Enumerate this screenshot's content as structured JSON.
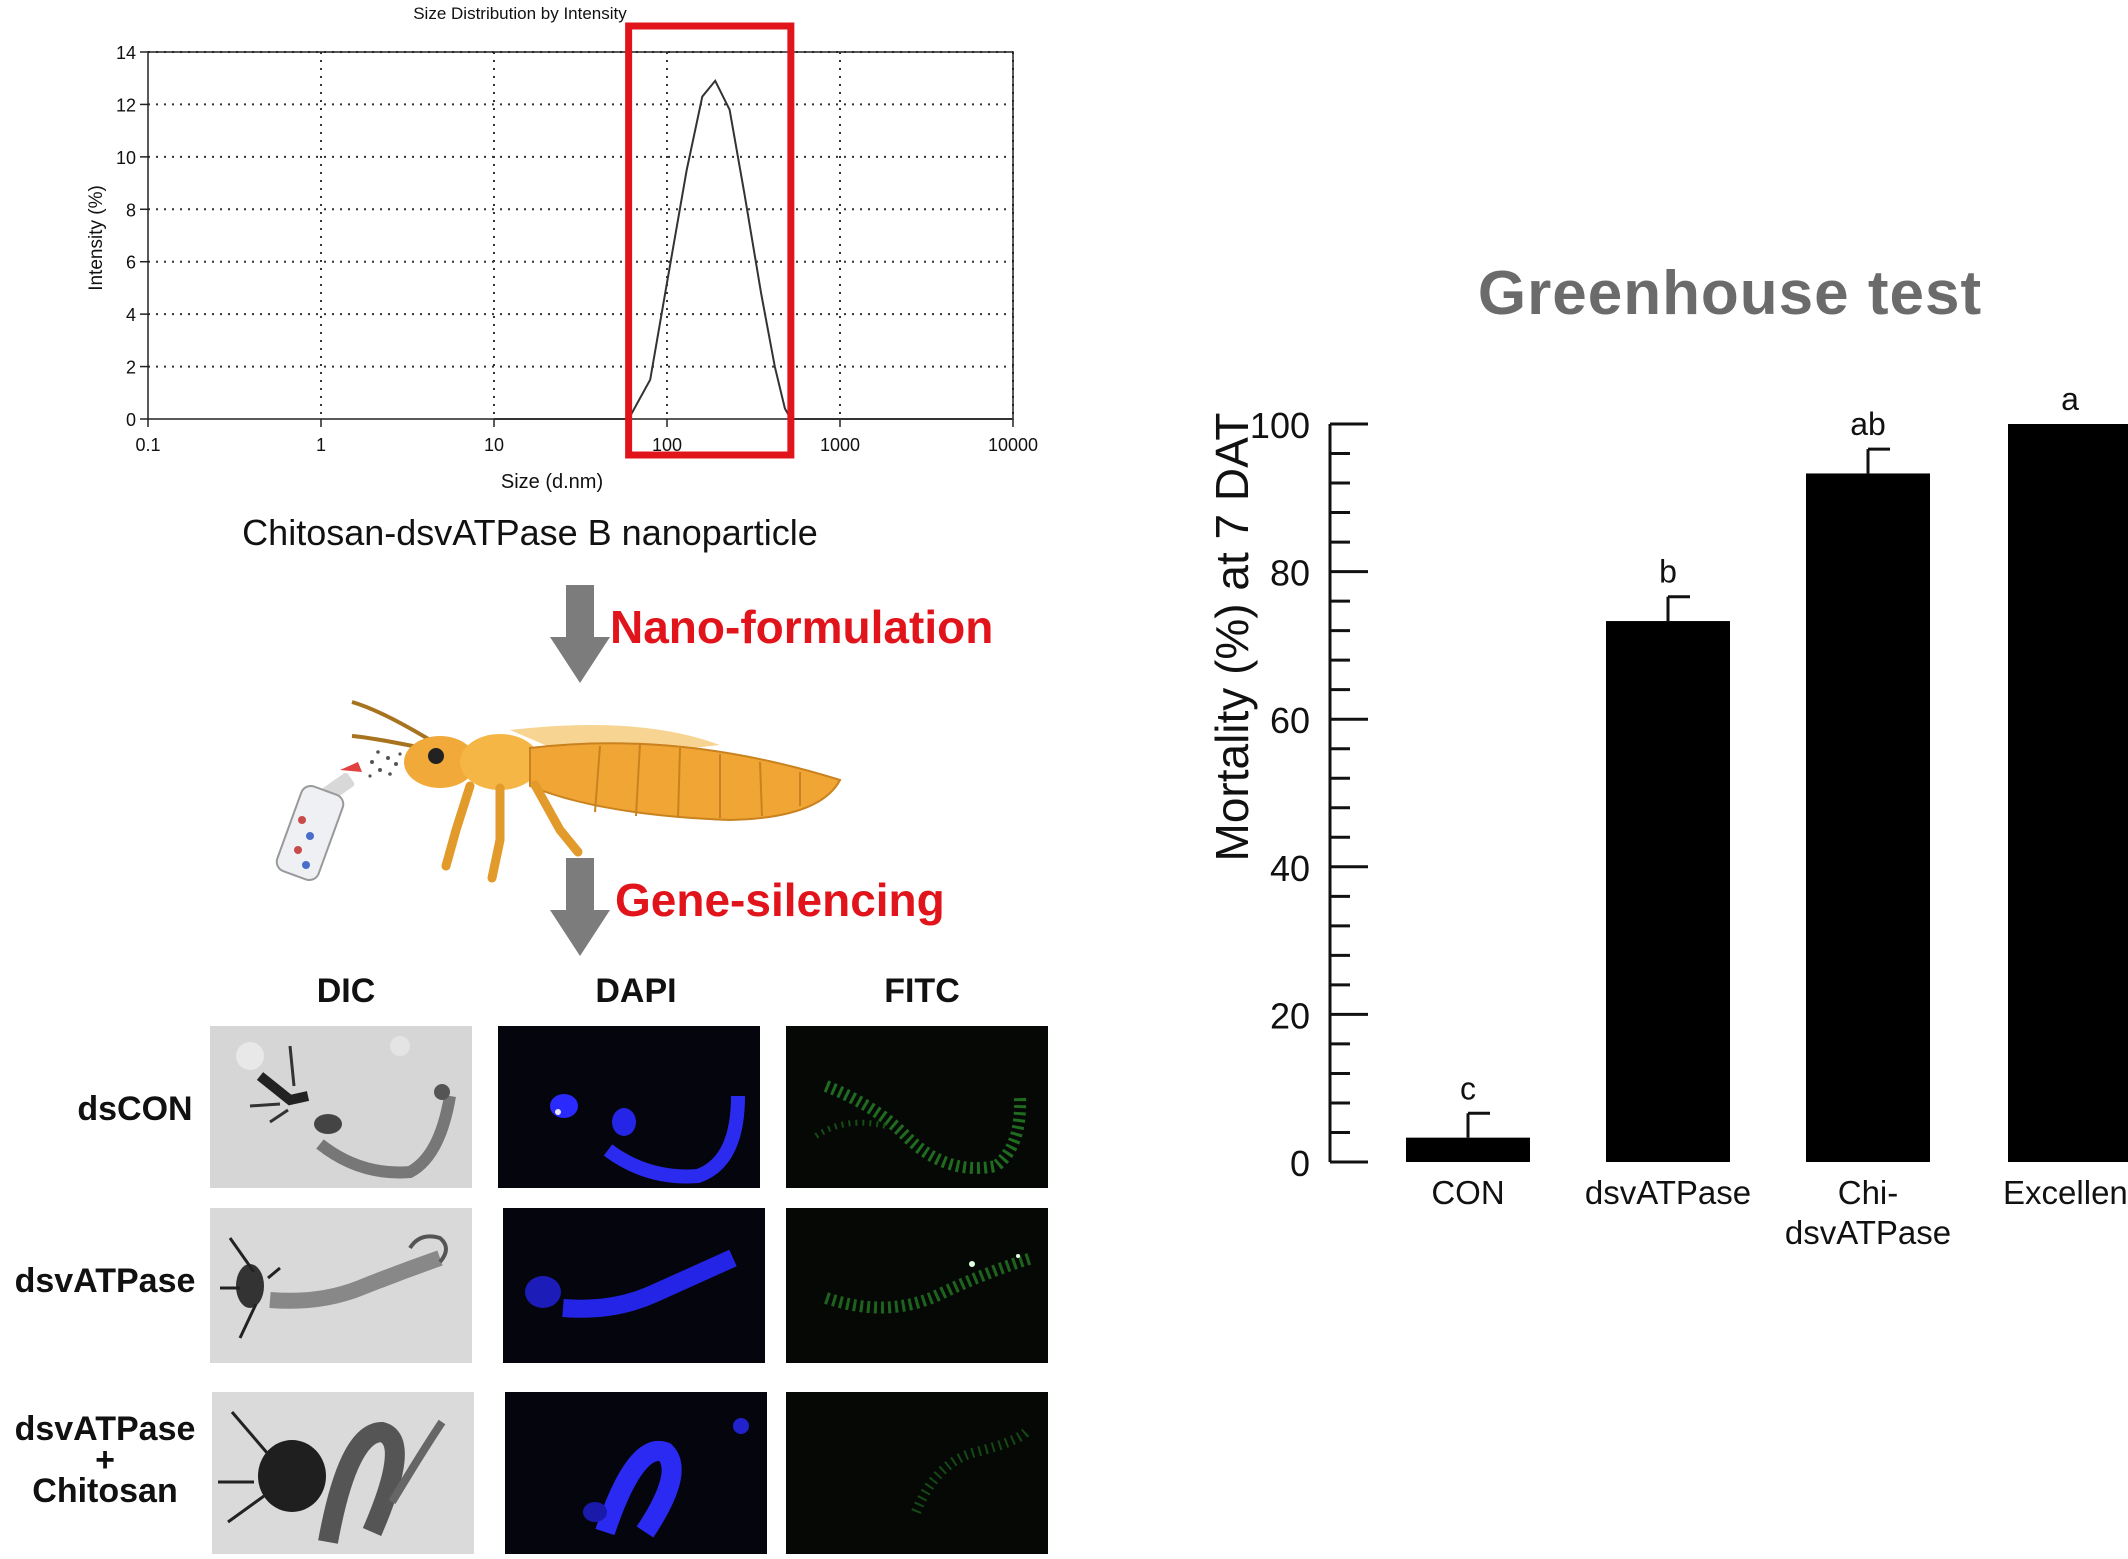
{
  "dls_chart": {
    "title": "Size Distribution by Intensity",
    "xlabel": "Size (d.nm)",
    "ylabel": "Intensity (%)",
    "x_ticks": [
      "0.1",
      "1",
      "10",
      "100",
      "1000",
      "10000"
    ],
    "y_ticks": [
      "0",
      "2",
      "4",
      "6",
      "8",
      "10",
      "12",
      "14"
    ],
    "highlight_color": "#e1141b"
  },
  "caption": "Chitosan-dsvATPase B nanoparticle",
  "steps": {
    "nano_formulation": "Nano-formulation",
    "gene_silencing": "Gene-silencing"
  },
  "microscopy": {
    "columns": [
      "DIC",
      "DAPI",
      "FITC"
    ],
    "rows": [
      {
        "lines": [
          "dsCON"
        ]
      },
      {
        "lines": [
          "dsvATPase"
        ]
      },
      {
        "lines": [
          "dsvATPase",
          "+",
          "Chitosan"
        ]
      }
    ]
  },
  "chart_data": [
    {
      "type": "line",
      "title": "Size Distribution by Intensity",
      "xlabel": "Size (d.nm)",
      "ylabel": "Intensity (%)",
      "x_scale": "log",
      "xlim": [
        0.1,
        10000
      ],
      "ylim": [
        0,
        14
      ],
      "grid": true,
      "x": [
        10,
        60,
        80,
        100,
        130,
        160,
        190,
        230,
        280,
        350,
        420,
        480,
        520,
        600,
        1000,
        10000
      ],
      "y": [
        0,
        0,
        1.5,
        5.2,
        9.5,
        12.3,
        12.9,
        11.8,
        8.6,
        4.8,
        2.0,
        0.4,
        0,
        0,
        0,
        0
      ],
      "highlight_range": [
        60,
        520
      ]
    },
    {
      "type": "bar",
      "title": "Greenhouse test",
      "xlabel": "",
      "ylabel": "Mortality (%) at 7 DAT",
      "categories": [
        "CON",
        "dsvATPase",
        "Chi-dsvATPase",
        "Excellent"
      ],
      "category_lines": [
        [
          "CON"
        ],
        [
          "dsvATPase"
        ],
        [
          "Chi-",
          "dsvATPase"
        ],
        [
          "Excellent"
        ]
      ],
      "values": [
        3.3,
        73.3,
        93.3,
        100
      ],
      "errors": [
        3.3,
        3.3,
        3.3,
        0
      ],
      "labels": [
        "c",
        "b",
        "ab",
        "a"
      ],
      "ylim": [
        0,
        100
      ],
      "y_ticks": [
        0,
        20,
        40,
        60,
        80,
        100
      ],
      "bar_color": "#000000"
    }
  ]
}
